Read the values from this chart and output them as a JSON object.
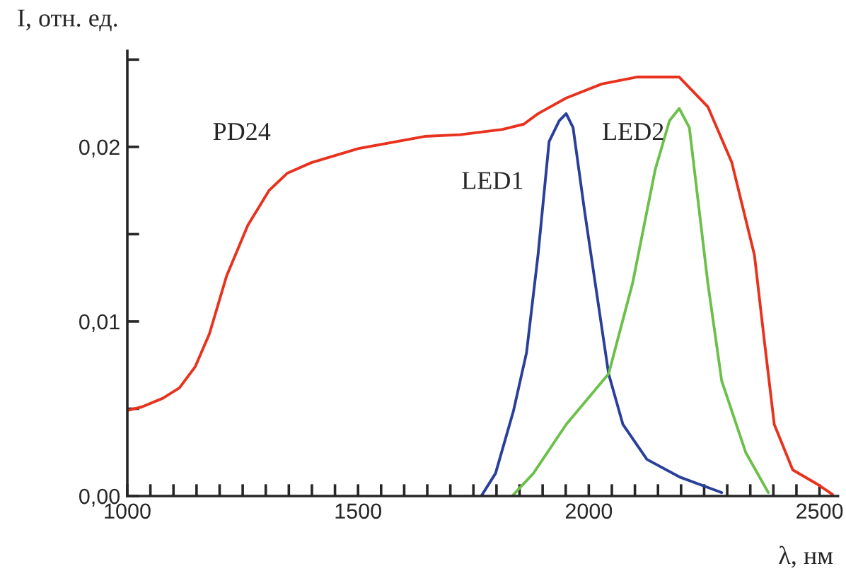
{
  "chart_data": {
    "type": "line",
    "xlabel": "λ, нм",
    "ylabel": "I, отн. ед.",
    "xlim": [
      1000,
      2540
    ],
    "ylim": [
      0,
      0.0255
    ],
    "xticks": [
      1000,
      {
        "value": 1050,
        "label": null
      },
      {
        "value": 1100,
        "label": null
      },
      {
        "value": 1150,
        "label": null
      },
      {
        "value": 1200,
        "label": null
      },
      {
        "value": 1250,
        "label": null
      },
      {
        "value": 1300,
        "label": null
      },
      {
        "value": 1350,
        "label": null
      },
      {
        "value": 1400,
        "label": null
      },
      {
        "value": 1450,
        "label": null
      },
      1500,
      {
        "value": 1550,
        "label": null
      },
      {
        "value": 1600,
        "label": null
      },
      {
        "value": 1650,
        "label": null
      },
      {
        "value": 1700,
        "label": null
      },
      {
        "value": 1750,
        "label": null
      },
      {
        "value": 1800,
        "label": null
      },
      {
        "value": 1850,
        "label": null
      },
      {
        "value": 1900,
        "label": null
      },
      {
        "value": 1950,
        "label": null
      },
      2000,
      {
        "value": 2050,
        "label": null
      },
      {
        "value": 2100,
        "label": null
      },
      {
        "value": 2150,
        "label": null
      },
      {
        "value": 2200,
        "label": null
      },
      {
        "value": 2250,
        "label": null
      },
      {
        "value": 2300,
        "label": null
      },
      {
        "value": 2350,
        "label": null
      },
      {
        "value": 2400,
        "label": null
      },
      {
        "value": 2450,
        "label": null
      },
      2500
    ],
    "yticks": [
      {
        "value": 0,
        "label": "0,00"
      },
      {
        "value": 0.005,
        "label": null
      },
      {
        "value": 0.01,
        "label": "0,01"
      },
      {
        "value": 0.015,
        "label": null
      },
      {
        "value": 0.02,
        "label": "0,02"
      },
      {
        "value": 0.025,
        "label": null
      }
    ],
    "grid": false,
    "legend": false,
    "marker": "none",
    "line_style": "solid",
    "series": [
      {
        "name": "PD24",
        "color": "#e8321e",
        "x": [
          1000,
          1031,
          1077,
          1113,
          1147,
          1178,
          1215,
          1261,
          1307,
          1347,
          1399,
          1500,
          1644,
          1721,
          1813,
          1859,
          1890,
          1951,
          2028,
          2104,
          2196,
          2258,
          2310,
          2359,
          2380,
          2402,
          2442,
          2494,
          2528
        ],
        "values": [
          0.0049,
          0.0051,
          0.0056,
          0.0062,
          0.0074,
          0.0093,
          0.0126,
          0.0155,
          0.0175,
          0.0185,
          0.0191,
          0.0199,
          0.0206,
          0.0207,
          0.021,
          0.0213,
          0.0219,
          0.0228,
          0.0236,
          0.024,
          0.024,
          0.0223,
          0.0191,
          0.0138,
          0.009,
          0.0041,
          0.0015,
          0.0007,
          0.0001
        ]
      },
      {
        "name": "LED1",
        "color": "#2a3f9a",
        "x": [
          1767,
          1798,
          1837,
          1865,
          1890,
          1914,
          1936,
          1951,
          1966,
          1991,
          2043,
          2074,
          2126,
          2196,
          2288
        ],
        "values": [
          0,
          0.0013,
          0.0049,
          0.0082,
          0.0138,
          0.0203,
          0.0215,
          0.0219,
          0.0211,
          0.0163,
          0.007,
          0.0041,
          0.0021,
          0.0011,
          0.0002
        ]
      },
      {
        "name": "LED2",
        "color": "#6cc04a",
        "x": [
          1834,
          1880,
          1951,
          2043,
          2095,
          2144,
          2175,
          2196,
          2218,
          2258,
          2288,
          2340,
          2389
        ],
        "values": [
          0,
          0.0013,
          0.0041,
          0.007,
          0.0122,
          0.0187,
          0.0215,
          0.0222,
          0.0211,
          0.0122,
          0.0066,
          0.0025,
          0.0002
        ]
      }
    ]
  }
}
